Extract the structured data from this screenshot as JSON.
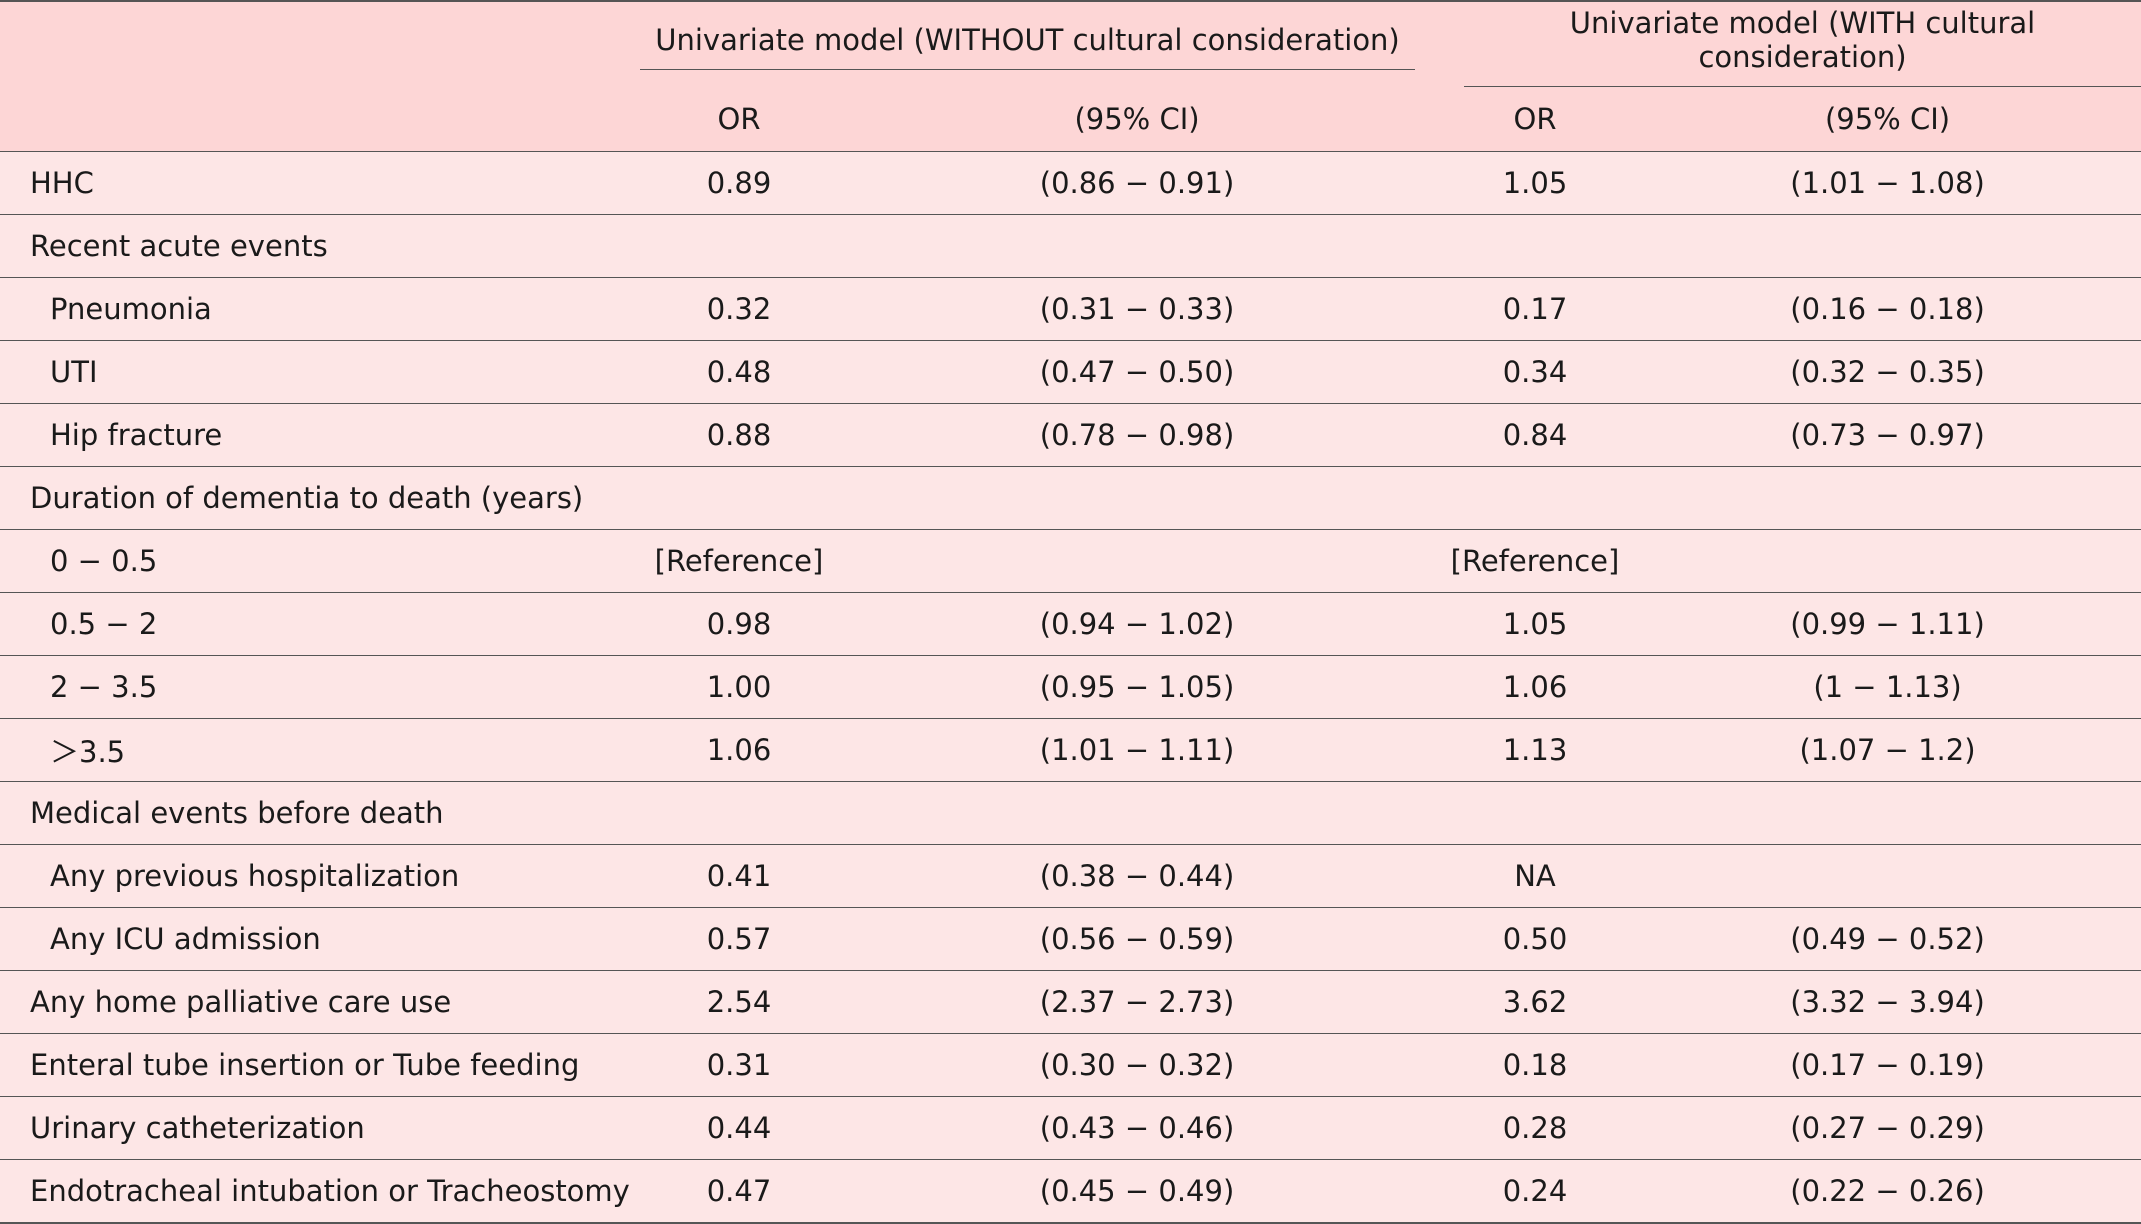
{
  "header": {
    "group1": "Univariate model (WITHOUT cultural consideration)",
    "group2": "Univariate model (WITH cultural consideration)",
    "or_label": "OR",
    "ci_label": "(95% CI)"
  },
  "rows": [
    {
      "label": "HHC",
      "or1": "0.89",
      "ci1": "(0.86 − 0.91)",
      "or2": "1.05",
      "ci2": "(1.01 − 1.08)"
    },
    {
      "label": "Recent acute events",
      "or1": "",
      "ci1": "",
      "or2": "",
      "ci2": ""
    },
    {
      "label": "Pneumonia",
      "or1": "0.32",
      "ci1": "(0.31 − 0.33)",
      "or2": "0.17",
      "ci2": "(0.16 − 0.18)"
    },
    {
      "label": "UTI",
      "or1": "0.48",
      "ci1": "(0.47 − 0.50)",
      "or2": "0.34",
      "ci2": "(0.32 − 0.35)"
    },
    {
      "label": "Hip fracture",
      "or1": "0.88",
      "ci1": "(0.78 − 0.98)",
      "or2": "0.84",
      "ci2": "(0.73 − 0.97)"
    },
    {
      "label": "Duration of dementia to death (years)",
      "or1": "",
      "ci1": "",
      "or2": "",
      "ci2": ""
    },
    {
      "label": "0 − 0.5",
      "or1": "[Reference]",
      "ci1": "",
      "or2": "[Reference]",
      "ci2": ""
    },
    {
      "label": "0.5 − 2",
      "or1": "0.98",
      "ci1": "(0.94 − 1.02)",
      "or2": "1.05",
      "ci2": "(0.99 − 1.11)"
    },
    {
      "label": "2 − 3.5",
      "or1": "1.00",
      "ci1": "(0.95 − 1.05)",
      "or2": "1.06",
      "ci2": "(1 − 1.13)"
    },
    {
      "label": "＞3.5",
      "or1": "1.06",
      "ci1": "(1.01 − 1.11)",
      "or2": "1.13",
      "ci2": "(1.07 − 1.2)"
    },
    {
      "label": "Medical events before death",
      "or1": "",
      "ci1": "",
      "or2": "",
      "ci2": ""
    },
    {
      "label": "Any previous hospitalization",
      "or1": "0.41",
      "ci1": "(0.38 − 0.44)",
      "or2": "NA",
      "ci2": ""
    },
    {
      "label": "Any ICU admission",
      "or1": "0.57",
      "ci1": "(0.56 − 0.59)",
      "or2": "0.50",
      "ci2": "(0.49 − 0.52)"
    },
    {
      "label": "Any home palliative care use",
      "or1": "2.54",
      "ci1": "(2.37 − 2.73)",
      "or2": "3.62",
      "ci2": "(3.32 − 3.94)"
    },
    {
      "label": "Enteral tube insertion or Tube feeding",
      "or1": "0.31",
      "ci1": "(0.30 − 0.32)",
      "or2": "0.18",
      "ci2": "(0.17 − 0.19)"
    },
    {
      "label": "Urinary catheterization",
      "or1": "0.44",
      "ci1": "(0.43 − 0.46)",
      "or2": "0.28",
      "ci2": "(0.27 − 0.29)"
    },
    {
      "label": "Endotracheal intubation or Tracheostomy",
      "or1": "0.47",
      "ci1": "(0.45 − 0.49)",
      "or2": "0.24",
      "ci2": "(0.22 − 0.26)"
    }
  ]
}
